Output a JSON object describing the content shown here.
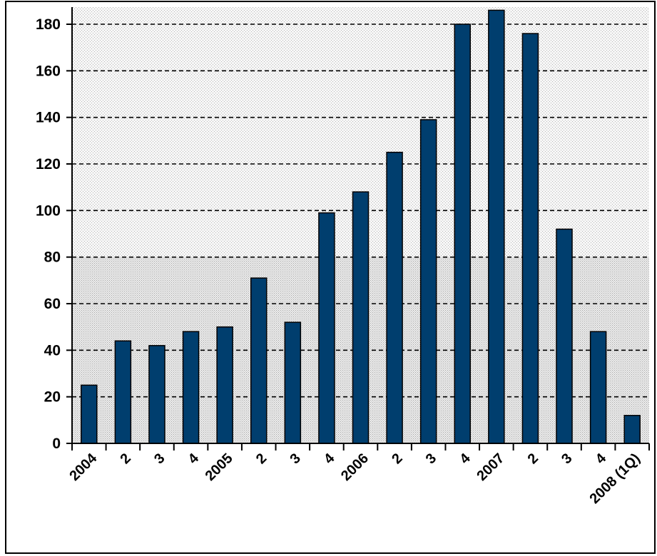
{
  "chart_data": {
    "type": "bar",
    "title": "",
    "xlabel": "",
    "ylabel": "",
    "categories": [
      "2004",
      "2",
      "3",
      "4",
      "2005",
      "2",
      "3",
      "4",
      "2006",
      "2",
      "3",
      "4",
      "2007",
      "2",
      "3",
      "4",
      "2008 (1Q)"
    ],
    "values": [
      25,
      44,
      42,
      48,
      50,
      71,
      52,
      99,
      108,
      125,
      139,
      180,
      186,
      176,
      92,
      48,
      12
    ],
    "ylim": [
      0,
      185
    ],
    "yticks": [
      0,
      20,
      40,
      60,
      80,
      100,
      120,
      140,
      160,
      180
    ],
    "grid": true,
    "bar_color": "#003E6E"
  }
}
